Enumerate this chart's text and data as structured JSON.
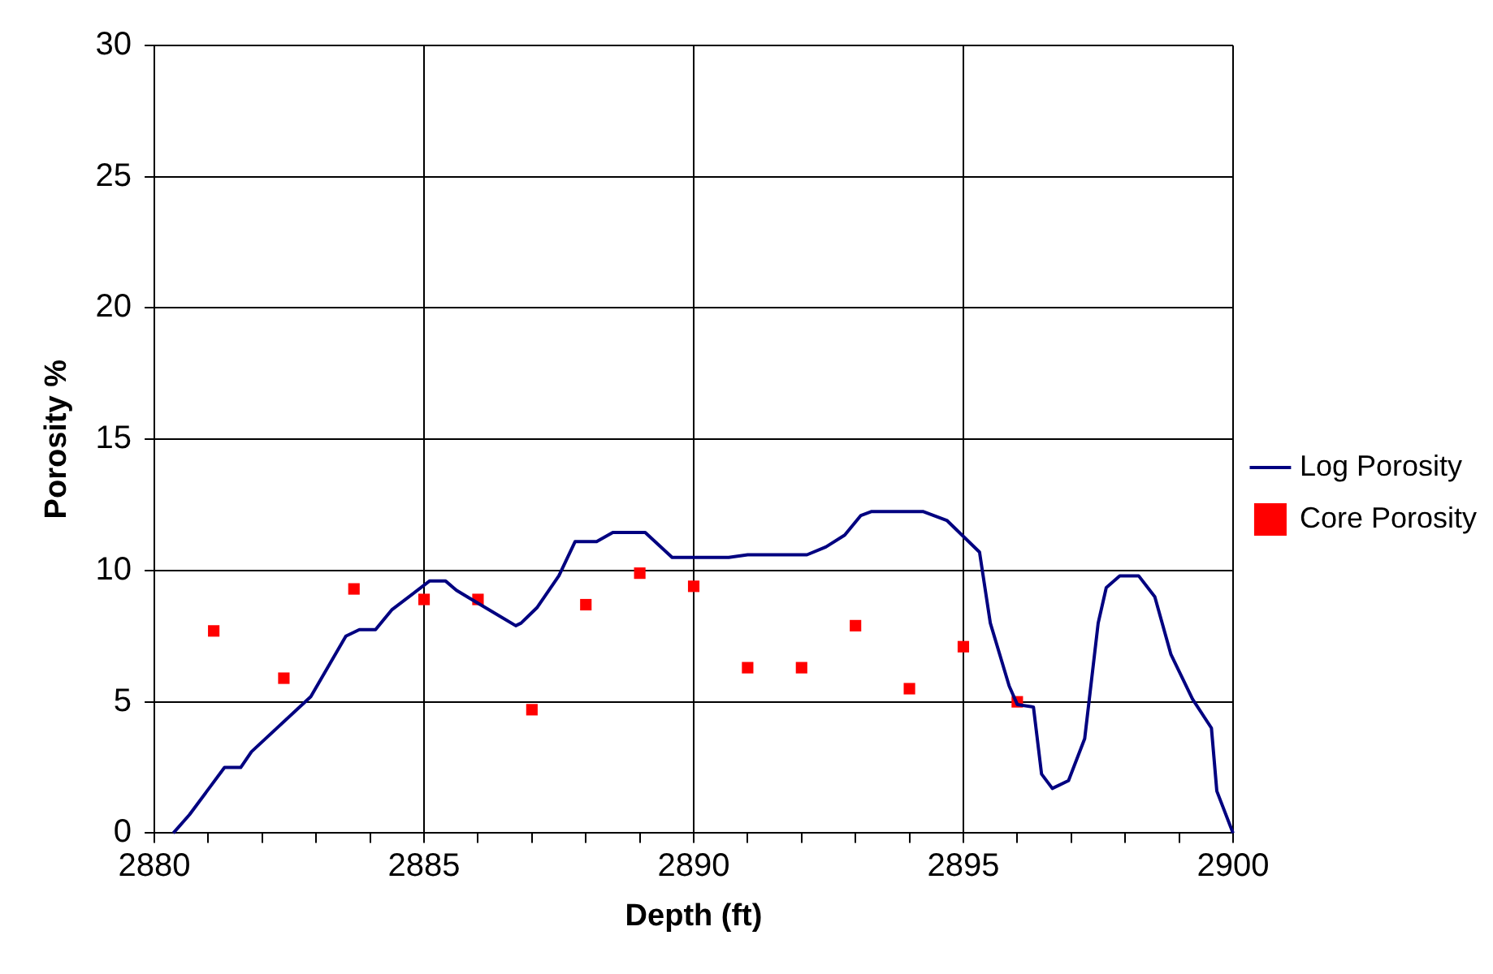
{
  "chart_data": {
    "type": "line",
    "xlabel": "Depth (ft)",
    "ylabel": "Porosity %",
    "xlim": [
      2880,
      2900
    ],
    "xticks": [
      2880,
      {
        "value": 2881,
        "label": null
      },
      {
        "value": 2882,
        "label": null
      },
      {
        "value": 2883,
        "label": null
      },
      {
        "value": 2884,
        "label": null
      },
      2885,
      {
        "value": 2886,
        "label": null
      },
      {
        "value": 2887,
        "label": null
      },
      {
        "value": 2888,
        "label": null
      },
      {
        "value": 2889,
        "label": null
      },
      2890,
      {
        "value": 2891,
        "label": null
      },
      {
        "value": 2892,
        "label": null
      },
      {
        "value": 2893,
        "label": null
      },
      {
        "value": 2894,
        "label": null
      },
      2895,
      {
        "value": 2896,
        "label": null
      },
      {
        "value": 2897,
        "label": null
      },
      {
        "value": 2898,
        "label": null
      },
      {
        "value": 2899,
        "label": null
      },
      2900
    ],
    "ylim": [
      0,
      30
    ],
    "yticks": [
      0,
      5,
      10,
      15,
      20,
      25,
      30
    ],
    "grid": true,
    "legend": "right",
    "series": [
      {
        "name": "Log Porosity",
        "color": "#000080",
        "marker": "none",
        "line_style": "solid",
        "x": [
          2880.35,
          2880.65,
          2881.3,
          2881.6,
          2881.8,
          2882.9,
          2883.55,
          2883.8,
          2884.1,
          2884.4,
          2885.1,
          2885.4,
          2885.6,
          2885.8,
          2886.7,
          2886.8,
          2887.1,
          2887.5,
          2887.8,
          2888.2,
          2888.5,
          2889.1,
          2889.6,
          2890.65,
          2891.0,
          2892.1,
          2892.45,
          2892.8,
          2893.1,
          2893.3,
          2894.25,
          2894.7,
          2895.3,
          2895.5,
          2895.85,
          2896.0,
          2896.3,
          2896.45,
          2896.65,
          2896.95,
          2897.25,
          2897.5,
          2897.65,
          2897.9,
          2898.25,
          2898.55,
          2898.85,
          2899.25,
          2899.6,
          2899.7,
          2900.0
        ],
        "values": [
          0,
          0.7,
          2.5,
          2.5,
          3.1,
          5.2,
          7.5,
          7.75,
          7.75,
          8.5,
          9.6,
          9.6,
          9.25,
          9.0,
          7.9,
          8.0,
          8.6,
          9.8,
          11.1,
          11.1,
          11.45,
          11.45,
          10.5,
          10.5,
          10.6,
          10.6,
          10.9,
          11.35,
          12.1,
          12.25,
          12.25,
          11.9,
          10.7,
          8.0,
          5.6,
          4.9,
          4.8,
          2.25,
          1.7,
          2.0,
          3.6,
          8.0,
          9.35,
          9.8,
          9.8,
          9.0,
          6.8,
          5.1,
          4.0,
          1.6,
          0
        ]
      },
      {
        "name": "Core Porosity",
        "type": "scatter",
        "color": "#ff0000",
        "marker": "square",
        "x": [
          2881.1,
          2882.4,
          2883.7,
          2885.0,
          2886.0,
          2887.0,
          2888.0,
          2889.0,
          2890.0,
          2891.0,
          2892.0,
          2893.0,
          2894.0,
          2895.0,
          2896.0
        ],
        "values": [
          7.7,
          5.9,
          9.3,
          8.9,
          8.9,
          4.7,
          8.7,
          9.9,
          9.4,
          6.3,
          6.3,
          7.9,
          5.5,
          7.1,
          5.0
        ]
      }
    ]
  }
}
